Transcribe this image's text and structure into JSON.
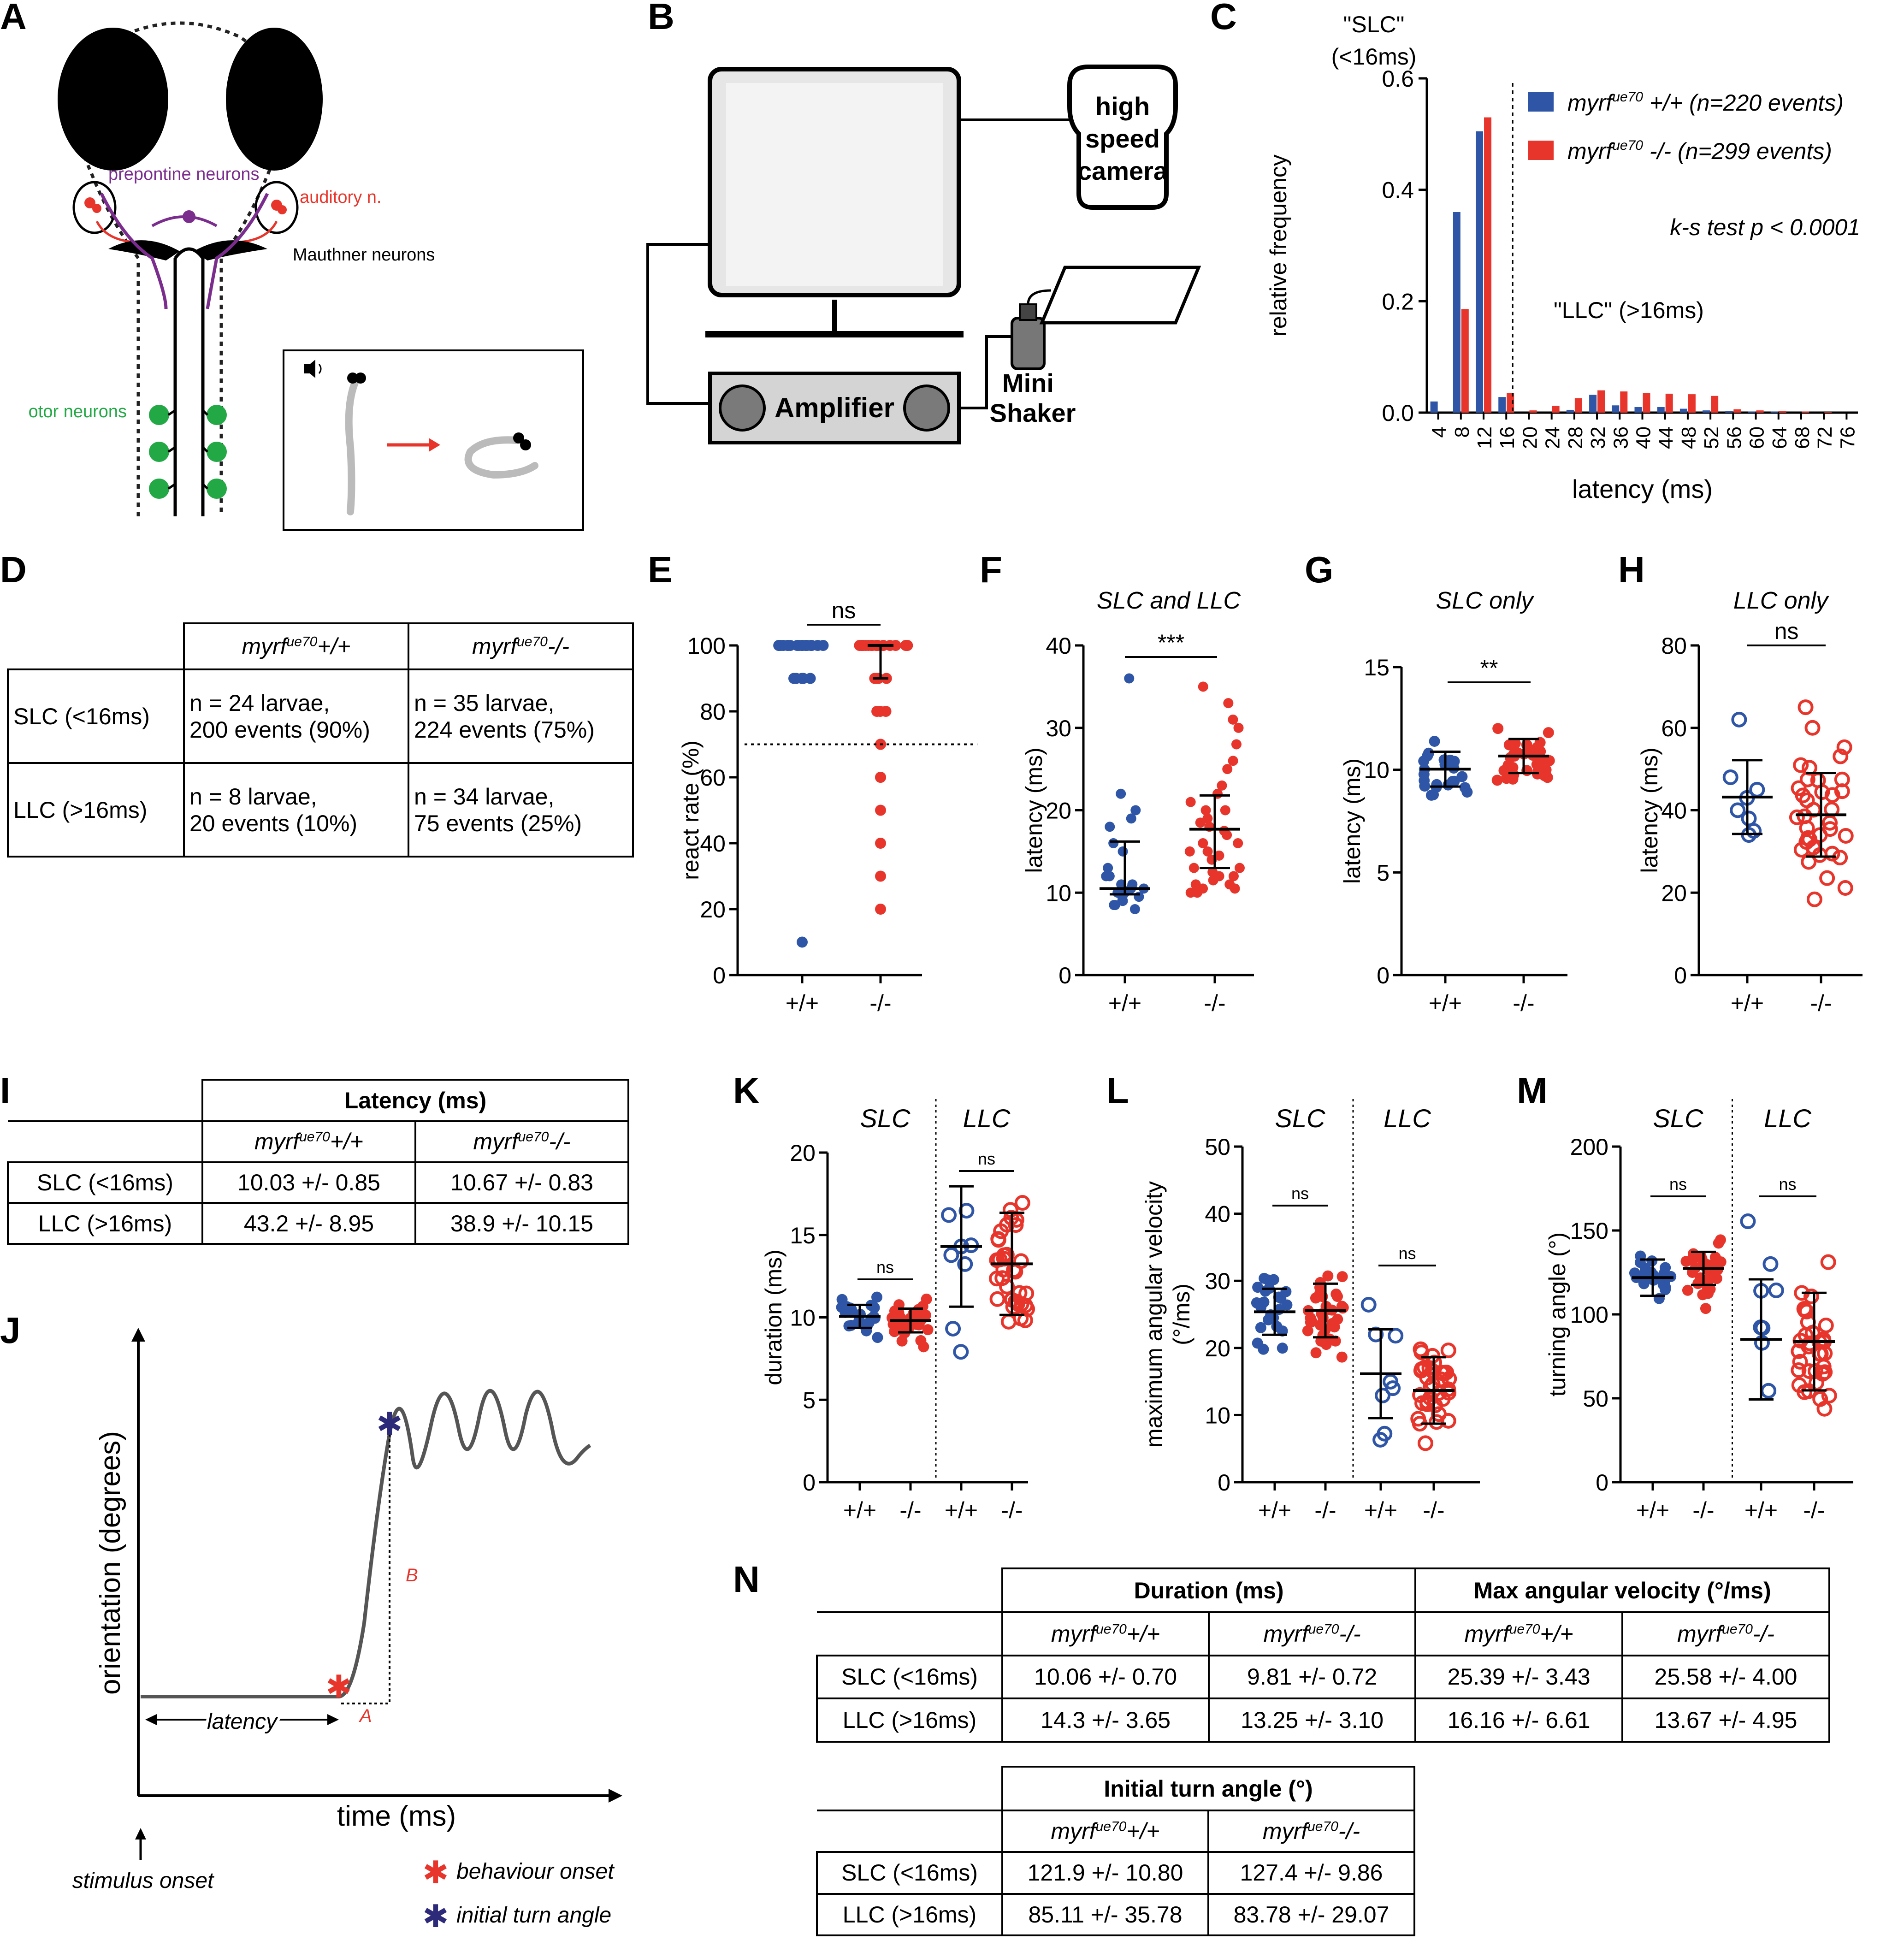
{
  "panel_letters": [
    "A",
    "B",
    "C",
    "D",
    "E",
    "F",
    "G",
    "H",
    "I",
    "J",
    "K",
    "L",
    "M",
    "N"
  ],
  "panel_a": {
    "prepontine": "prepontine neurons",
    "auditory": "auditory n.",
    "mauthner": "Mauthner neurons",
    "motor": "motor neurons"
  },
  "panel_b": {
    "camera": [
      "high",
      "speed",
      "camera"
    ],
    "amplifier": "Amplifier",
    "shaker": [
      "Mini",
      "Shaker"
    ]
  },
  "panel_c": {
    "slc_label": [
      "\"SLC\"",
      "(<16ms)"
    ],
    "llc_label": "\"LLC\" (>16ms)",
    "legend_wt": "myrf",
    "legend_wt_sup": "ue70",
    "legend_wt_rest": " +/+ (n=220 events)",
    "legend_mut": "myrf",
    "legend_mut_sup": "ue70",
    "legend_mut_rest": " -/- (n=299 events)",
    "ks": "k-s test p < 0.0001"
  },
  "colors": {
    "blue": "#2e55a6",
    "red": "#e8352b",
    "purple": "#7b2d8e",
    "green": "#22a845"
  },
  "chart_data": [
    {
      "panel": "C",
      "type": "bar",
      "xlabel": "latency (ms)",
      "ylabel": "relative frequency",
      "ylim": [
        0,
        0.6
      ],
      "yticks": [
        "0.0",
        "0.2",
        "0.4",
        "0.6"
      ],
      "categories": [
        "4",
        "8",
        "12",
        "16",
        "20",
        "24",
        "28",
        "32",
        "36",
        "40",
        "44",
        "48",
        "52",
        "56",
        "60",
        "64",
        "68",
        "72",
        "76"
      ],
      "series": [
        {
          "name": "myrf ue70 +/+ (n=220 events)",
          "values": [
            0.02,
            0.36,
            0.505,
            0.028,
            0,
            0,
            0.005,
            0.032,
            0.013,
            0.01,
            0.01,
            0.007,
            0.004,
            0.003,
            0.002,
            0.002,
            0,
            0,
            0
          ]
        },
        {
          "name": "myrf ue70 -/- (n=299 events)",
          "values": [
            0,
            0.186,
            0.53,
            0.035,
            0.004,
            0.012,
            0.026,
            0.04,
            0.038,
            0.035,
            0.034,
            0.033,
            0.03,
            0.006,
            0.004,
            0.003,
            0.002,
            0.001,
            0
          ]
        }
      ]
    },
    {
      "panel": "E",
      "type": "scatter",
      "ylabel": "react rate (%)",
      "ylim": [
        0,
        100
      ],
      "yticks": [
        "0",
        "20",
        "40",
        "60",
        "80",
        "100"
      ],
      "categories": [
        "+/+",
        "-/-"
      ],
      "significance": "ns",
      "threshold": 70
    },
    {
      "panel": "F",
      "type": "scatter",
      "title": "SLC and LLC",
      "ylabel": "latency (ms)",
      "ylim": [
        0,
        40
      ],
      "yticks": [
        "0",
        "10",
        "20",
        "30",
        "40"
      ],
      "categories": [
        "+/+",
        "-/-"
      ],
      "significance": "***",
      "median": [
        10.5,
        17.7
      ],
      "iqr": [
        [
          9.8,
          16.2
        ],
        [
          13,
          21.8
        ]
      ]
    },
    {
      "panel": "G",
      "type": "scatter",
      "title": "SLC only",
      "ylabel": "latency (ms)",
      "ylim": [
        0,
        15
      ],
      "yticks": [
        "0",
        "5",
        "10",
        "15"
      ],
      "categories": [
        "+/+",
        "-/-"
      ],
      "significance": "**",
      "mean": [
        10.03,
        10.67
      ],
      "sd": [
        0.85,
        0.83
      ]
    },
    {
      "panel": "H",
      "type": "scatter",
      "title": "LLC only",
      "ylabel": "latency (ms)",
      "ylim": [
        0,
        80
      ],
      "yticks": [
        "0",
        "20",
        "40",
        "60",
        "80"
      ],
      "categories": [
        "+/+",
        "-/-"
      ],
      "significance": "ns",
      "mean": [
        43.2,
        38.9
      ],
      "sd": [
        8.95,
        10.15
      ]
    },
    {
      "panel": "K",
      "type": "scatter",
      "ylabel": "duration (ms)",
      "ylim": [
        0,
        20
      ],
      "yticks": [
        "0",
        "5",
        "10",
        "15",
        "20"
      ],
      "groups": [
        "SLC",
        "LLC"
      ],
      "categories": [
        "+/+",
        "-/-",
        "+/+",
        "-/-"
      ],
      "significance": [
        "ns",
        "ns"
      ],
      "mean": [
        10.06,
        9.81,
        14.3,
        13.25
      ],
      "sd": [
        0.7,
        0.72,
        3.65,
        3.1
      ]
    },
    {
      "panel": "L",
      "type": "scatter",
      "ylabel": [
        "maximum angular velocity",
        "(°/ms)"
      ],
      "ylim": [
        0,
        50
      ],
      "yticks": [
        "0",
        "10",
        "20",
        "30",
        "40",
        "50"
      ],
      "groups": [
        "SLC",
        "LLC"
      ],
      "categories": [
        "+/+",
        "-/-",
        "+/+",
        "-/-"
      ],
      "significance": [
        "ns",
        "ns"
      ],
      "mean": [
        25.39,
        25.58,
        16.16,
        13.67
      ],
      "sd": [
        3.43,
        4.0,
        6.61,
        4.95
      ]
    },
    {
      "panel": "M",
      "type": "scatter",
      "ylabel": "turning angle (°)",
      "ylim": [
        0,
        200
      ],
      "yticks": [
        "0",
        "50",
        "100",
        "150",
        "200"
      ],
      "groups": [
        "SLC",
        "LLC"
      ],
      "categories": [
        "+/+",
        "-/-",
        "+/+",
        "-/-"
      ],
      "significance": [
        "ns",
        "ns"
      ],
      "mean": [
        121.9,
        127.4,
        85.11,
        83.78
      ],
      "sd": [
        10.8,
        9.86,
        35.78,
        29.07
      ]
    }
  ],
  "table_d": {
    "col1": "+/+",
    "col2": "-/-",
    "gene": "myrf",
    "sup": "ue70",
    "rows": [
      {
        "label": "SLC (<16ms)",
        "c1": [
          "n = 24 larvae,",
          "200 events (90%)"
        ],
        "c2": [
          "n = 35 larvae,",
          "224 events (75%)"
        ]
      },
      {
        "label": "LLC (>16ms)",
        "c1": [
          "n = 8 larvae,",
          "20 events (10%)"
        ],
        "c2": [
          "n = 34 larvae,",
          "75 events (25%)"
        ]
      }
    ]
  },
  "table_i": {
    "title": "Latency (ms)",
    "rows": [
      {
        "label": "SLC (<16ms)",
        "c1": "10.03 +/- 0.85",
        "c2": "10.67 +/- 0.83"
      },
      {
        "label": "LLC (>16ms)",
        "c1": "43.2 +/- 8.95",
        "c2": "38.9 +/- 10.15"
      }
    ]
  },
  "panel_j": {
    "ylabel": "orientation (degrees)",
    "xlabel": "time (ms)",
    "latency": "latency",
    "a": "A",
    "b": "B",
    "stim": "stimulus onset",
    "legend_onset": "behaviour onset",
    "legend_angle": "initial turn angle"
  },
  "table_n": {
    "title_dur": "Duration (ms)",
    "title_vel": "Max angular velocity (°/ms)",
    "rows": [
      {
        "label": "SLC (<16ms)",
        "v": [
          "10.06 +/- 0.70",
          "9.81 +/- 0.72",
          "25.39 +/- 3.43",
          "25.58 +/- 4.00"
        ]
      },
      {
        "label": "LLC (>16ms)",
        "v": [
          "14.3 +/- 3.65",
          "13.25 +/- 3.10",
          "16.16 +/- 6.61",
          "13.67 +/- 4.95"
        ]
      }
    ],
    "title_angle": "Initial turn angle (°)",
    "rows2": [
      {
        "label": "SLC (<16ms)",
        "v": [
          "121.9 +/- 10.80",
          "127.4 +/- 9.86"
        ]
      },
      {
        "label": "LLC (>16ms)",
        "v": [
          "85.11 +/- 35.78",
          "83.78 +/- 29.07"
        ]
      }
    ]
  }
}
